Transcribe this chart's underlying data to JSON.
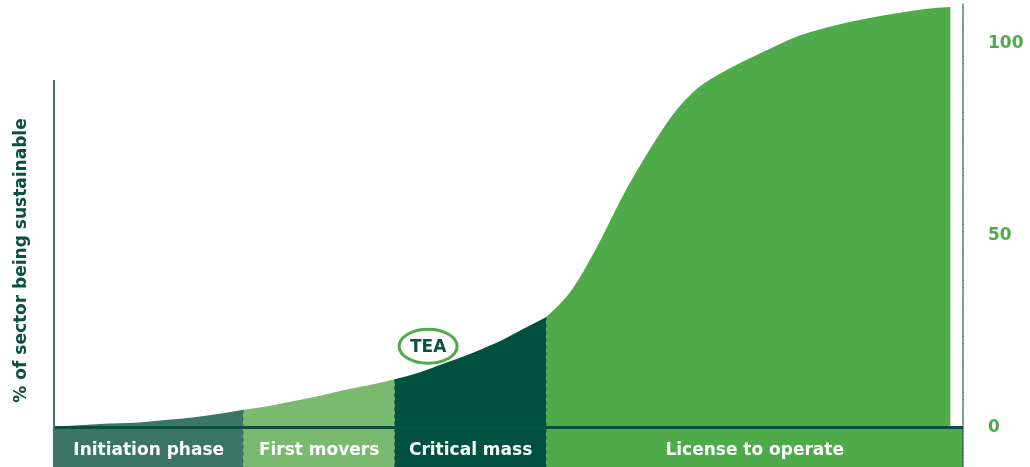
{
  "chart_data": {
    "type": "area",
    "ylabel": "% of sector being sustainable",
    "categories": [
      null,
      null,
      null,
      null,
      null,
      null,
      null,
      null,
      null,
      null,
      null,
      null,
      null,
      null,
      null,
      null,
      null,
      null,
      null,
      null,
      null,
      null,
      null,
      null,
      null,
      null,
      null,
      null,
      null,
      null,
      null,
      null,
      null,
      null,
      null,
      null
    ],
    "series": [
      {
        "name": "Initiation phase",
        "color": "#3a7565",
        "values": [
          0,
          0.4,
          0.7,
          1.0,
          1.6,
          2.2,
          3.1,
          4.2,
          null,
          null,
          null,
          null,
          null,
          null,
          null,
          null,
          null,
          null,
          null,
          null,
          null,
          null,
          null,
          null,
          null,
          null,
          null,
          null,
          null,
          null,
          null,
          null,
          null,
          null,
          null,
          null
        ]
      },
      {
        "name": "First movers",
        "color": "#7aba6e",
        "values": [
          null,
          null,
          null,
          null,
          null,
          null,
          null,
          4.2,
          5.2,
          6.5,
          7.8,
          9.4,
          10.7,
          12.2,
          null,
          null,
          null,
          null,
          null,
          null,
          null,
          null,
          null,
          null,
          null,
          null,
          null,
          null,
          null,
          null,
          null,
          null,
          null,
          null,
          null,
          null
        ]
      },
      {
        "name": "Critical mass",
        "color": "#00513f",
        "values": [
          null,
          null,
          null,
          null,
          null,
          null,
          null,
          null,
          null,
          null,
          null,
          null,
          null,
          12.2,
          14,
          16.4,
          18.8,
          21.6,
          25,
          28.4,
          null,
          null,
          null,
          null,
          null,
          null,
          null,
          null,
          null,
          null,
          null,
          null,
          null,
          null,
          null,
          null
        ]
      },
      {
        "name": "License to operate",
        "color": "#4faa4a",
        "values": [
          null,
          null,
          null,
          null,
          null,
          null,
          null,
          null,
          null,
          null,
          null,
          null,
          null,
          null,
          null,
          null,
          null,
          null,
          null,
          28.4,
          35.4,
          46.6,
          59.6,
          71,
          81,
          88,
          92.2,
          95.6,
          98.7,
          101.6,
          103.6,
          105.2,
          106.5,
          107.6,
          108.6,
          109.1
        ]
      }
    ],
    "ylim": [
      0,
      110
    ],
    "yticks": [
      0,
      50,
      100
    ],
    "tick_labels": "y",
    "annotations": [
      {
        "text": "TEA"
      }
    ]
  }
}
